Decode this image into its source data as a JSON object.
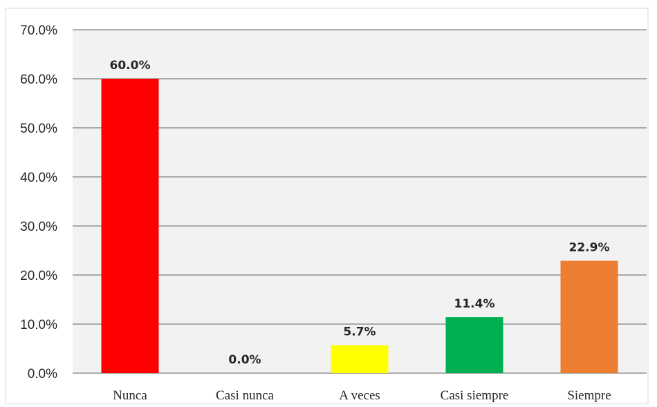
{
  "chart_data": {
    "type": "bar",
    "title": "",
    "xlabel": "",
    "ylabel": "",
    "categories": [
      "Nunca",
      "Casi nunca",
      "A veces",
      "Casi siempre",
      "Siempre"
    ],
    "values": [
      60.0,
      0.0,
      5.7,
      11.4,
      22.9
    ],
    "value_labels": [
      "60.0%",
      "0.0%",
      "5.7%",
      "11.4%",
      "22.9%"
    ],
    "colors": [
      "#ff0000",
      "#ffc000",
      "#ffff00",
      "#00b050",
      "#ed7d31"
    ],
    "ylim": [
      0,
      70
    ],
    "yticks": [
      0,
      10,
      20,
      30,
      40,
      50,
      60,
      70
    ],
    "ytick_labels": [
      "0.0%",
      "10.0%",
      "20.0%",
      "30.0%",
      "40.0%",
      "50.0%",
      "60.0%",
      "70.0%"
    ],
    "grid": true,
    "legend": false,
    "plot_background": "#f2f2f2",
    "gridline_color": "#7f7f7f"
  }
}
